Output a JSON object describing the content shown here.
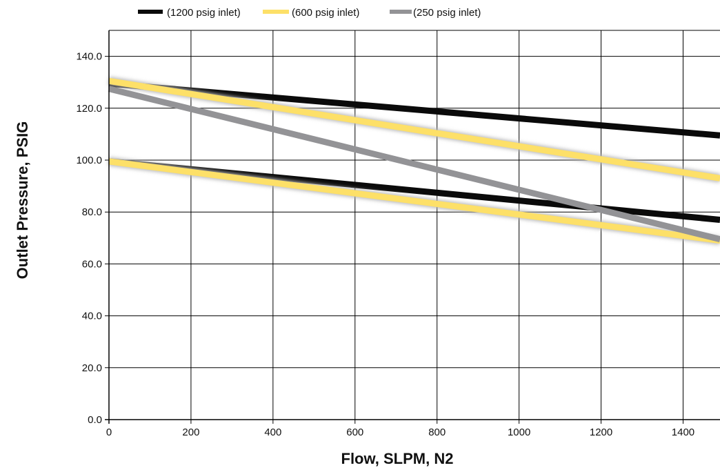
{
  "chart_data": {
    "type": "line",
    "xlabel": "Flow, SLPM, N2",
    "ylabel": "Outlet Pressure, PSIG",
    "xlim": [
      0,
      1490
    ],
    "ylim": [
      0,
      150
    ],
    "x_ticks": [
      0,
      200,
      400,
      600,
      800,
      1000,
      1200,
      1400
    ],
    "y_ticks": [
      0,
      20,
      40,
      60,
      80,
      100,
      120,
      140
    ],
    "x_tick_labels": [
      "0",
      "200",
      "400",
      "600",
      "800",
      "1000",
      "1200",
      "1400"
    ],
    "y_tick_labels": [
      "0.0",
      "20.0",
      "40.0",
      "60.0",
      "80.0",
      "100.0",
      "120.0",
      "140.0"
    ],
    "grid": true,
    "legend_position": "top",
    "legend": [
      {
        "label": "(1200 psig inlet)",
        "color": "#0a0a0a"
      },
      {
        "label": "(600 psig inlet)",
        "color": "#fde068"
      },
      {
        "label": "(250 psig inlet)",
        "color": "#939396"
      }
    ],
    "series": [
      {
        "name": "(1200 psig inlet)",
        "color": "#0a0a0a",
        "glow": false,
        "x": [
          0,
          1490
        ],
        "y": [
          129.5,
          109.5
        ]
      },
      {
        "name": "(1200 psig inlet)",
        "color": "#0a0a0a",
        "glow": false,
        "x": [
          0,
          1490
        ],
        "y": [
          99.5,
          77.0
        ]
      },
      {
        "name": "(600 psig inlet)",
        "color": "#fde068",
        "glow": true,
        "x": [
          0,
          1490
        ],
        "y": [
          130.5,
          93.0
        ]
      },
      {
        "name": "(600 psig inlet)",
        "color": "#fde068",
        "glow": true,
        "x": [
          0,
          1490
        ],
        "y": [
          99.5,
          69.0
        ]
      },
      {
        "name": "(250 psig inlet)",
        "color": "#939396",
        "glow": false,
        "x": [
          0,
          1490
        ],
        "y": [
          127.5,
          69.5
        ]
      }
    ]
  }
}
